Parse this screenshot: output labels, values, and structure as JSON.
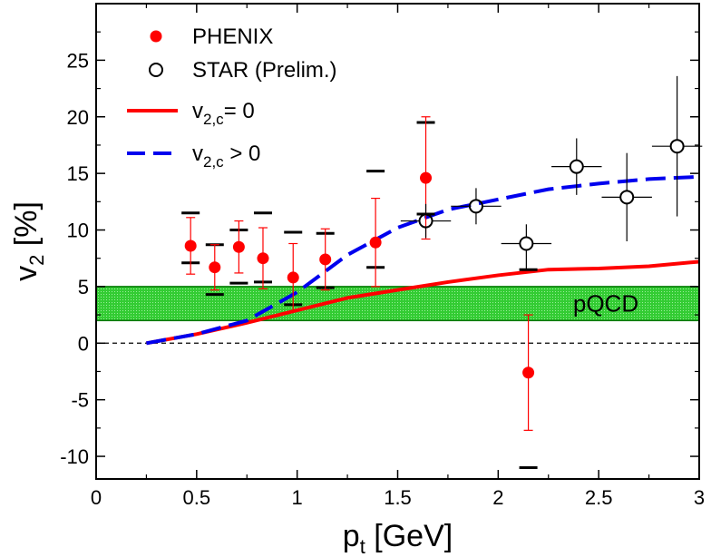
{
  "chart_data": {
    "type": "scatter",
    "title": "",
    "xlabel": {
      "main": "p",
      "sub": "t",
      "unit": "[GeV]"
    },
    "ylabel": {
      "main": "v",
      "sub": "2",
      "unit": "[%]"
    },
    "xlim": [
      0,
      3
    ],
    "ylim": [
      -12,
      30
    ],
    "x_ticks": [
      0,
      0.5,
      1,
      1.5,
      2,
      2.5,
      3
    ],
    "x_tick_labels": [
      "0",
      "0.5",
      "1",
      "1.5",
      "2",
      "2.5",
      "3"
    ],
    "y_ticks": [
      -10,
      -5,
      0,
      5,
      10,
      15,
      20,
      25
    ],
    "y_tick_labels": [
      "-10",
      "-5",
      "0",
      "5",
      "10",
      "15",
      "20",
      "25"
    ],
    "grid": false,
    "legend_position": "top-left",
    "band": {
      "label": "pQCD",
      "ymin": 2,
      "ymax": 5,
      "color": "#33cc33"
    },
    "series": [
      {
        "name": "PHENIX",
        "kind": "filled-circle",
        "color": "#ff0000",
        "points": [
          {
            "x": 0.47,
            "y": 8.6,
            "err_lo": 2.5,
            "err_hi": 2.5,
            "sys_lo": 7.1,
            "sys_hi": 11.5
          },
          {
            "x": 0.59,
            "y": 6.7,
            "err_lo": 2.0,
            "err_hi": 2.0,
            "sys_lo": 4.3,
            "sys_hi": 8.7
          },
          {
            "x": 0.71,
            "y": 8.5,
            "err_lo": 2.3,
            "err_hi": 2.3,
            "sys_lo": 5.3,
            "sys_hi": 10.0
          },
          {
            "x": 0.83,
            "y": 7.5,
            "err_lo": 2.7,
            "err_hi": 2.7,
            "sys_lo": 5.4,
            "sys_hi": 11.5
          },
          {
            "x": 0.98,
            "y": 5.8,
            "err_lo": 3.0,
            "err_hi": 3.0,
            "sys_lo": 3.4,
            "sys_hi": 9.8
          },
          {
            "x": 1.14,
            "y": 7.4,
            "err_lo": 2.7,
            "err_hi": 2.7,
            "sys_lo": 4.9,
            "sys_hi": 9.7
          },
          {
            "x": 1.39,
            "y": 8.9,
            "err_lo": 3.9,
            "err_hi": 3.9,
            "sys_lo": 6.7,
            "sys_hi": 15.2
          },
          {
            "x": 1.64,
            "y": 14.6,
            "err_lo": 5.4,
            "err_hi": 5.4,
            "sys_lo": 11.4,
            "sys_hi": 19.5
          },
          {
            "x": 2.15,
            "y": -2.6,
            "err_lo": 5.1,
            "err_hi": 5.1,
            "sys_lo": -11.0,
            "sys_hi": 6.5
          }
        ]
      },
      {
        "name": "STAR (Prelim.)",
        "kind": "open-circle",
        "color": "#000000",
        "points": [
          {
            "x": 1.64,
            "y": 10.8,
            "xerr": 0.125,
            "err_lo": 1.5,
            "err_hi": 1.5
          },
          {
            "x": 1.89,
            "y": 12.1,
            "xerr": 0.125,
            "err_lo": 1.6,
            "err_hi": 1.6
          },
          {
            "x": 2.14,
            "y": 8.8,
            "xerr": 0.125,
            "err_lo": 2.3,
            "err_hi": 1.7
          },
          {
            "x": 2.39,
            "y": 15.6,
            "xerr": 0.125,
            "err_lo": 2.5,
            "err_hi": 2.5
          },
          {
            "x": 2.64,
            "y": 12.9,
            "xerr": 0.125,
            "err_lo": 3.9,
            "err_hi": 3.9
          },
          {
            "x": 2.89,
            "y": 17.4,
            "xerr": 0.125,
            "err_lo": 6.2,
            "err_hi": 6.2
          }
        ]
      },
      {
        "name": "v_{2,c}= 0",
        "legend_main": "v",
        "legend_sub": "2,c",
        "legend_rest": "= 0",
        "kind": "line",
        "color": "#ff0000",
        "dash": "solid",
        "x": [
          0.25,
          0.5,
          0.75,
          1.0,
          1.25,
          1.5,
          1.75,
          2.0,
          2.25,
          2.5,
          2.75,
          3.0
        ],
        "y": [
          0.0,
          0.8,
          1.8,
          2.9,
          4.0,
          4.7,
          5.4,
          6.0,
          6.5,
          6.6,
          6.8,
          7.2
        ]
      },
      {
        "name": "v_{2,c} > 0",
        "legend_main": "v",
        "legend_sub": "2,c",
        "legend_rest": " > 0",
        "kind": "line",
        "color": "#0000ee",
        "dash": "dashed",
        "x": [
          0.25,
          0.5,
          0.75,
          1.0,
          1.25,
          1.5,
          1.75,
          2.0,
          2.25,
          2.5,
          2.75,
          3.0
        ],
        "y": [
          0.0,
          0.8,
          2.0,
          4.5,
          7.8,
          10.2,
          11.8,
          12.7,
          13.6,
          14.1,
          14.5,
          14.7
        ]
      }
    ]
  }
}
